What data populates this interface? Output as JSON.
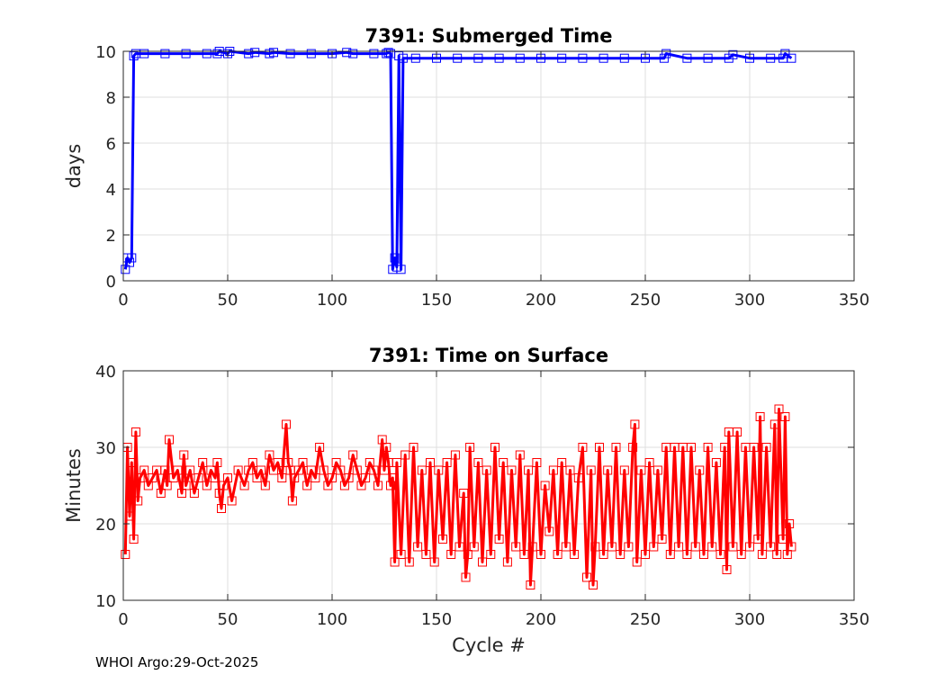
{
  "footer": "WHOI Argo:29-Oct-2025",
  "chart_data": [
    {
      "type": "line",
      "title": "7391: Submerged Time",
      "xlabel": "",
      "ylabel": "days",
      "xlim": [
        0,
        350
      ],
      "ylim": [
        0,
        10
      ],
      "xticks": [
        0,
        50,
        100,
        150,
        200,
        250,
        300,
        350
      ],
      "yticks": [
        0,
        2,
        4,
        6,
        8,
        10
      ],
      "grid": true,
      "marker": "square",
      "color": "#0000ff",
      "series": [
        {
          "name": "Submerged Time",
          "x": [
            1,
            2,
            3,
            4,
            5,
            6,
            10,
            20,
            30,
            40,
            45,
            46,
            50,
            51,
            60,
            63,
            70,
            72,
            80,
            90,
            100,
            107,
            110,
            120,
            126,
            127,
            128,
            129,
            130,
            131,
            132,
            133,
            134,
            140,
            150,
            160,
            170,
            180,
            190,
            200,
            210,
            220,
            230,
            240,
            250,
            259,
            260,
            270,
            280,
            290,
            292,
            300,
            310,
            316,
            317,
            320
          ],
          "y": [
            0.5,
            1.0,
            0.8,
            1.0,
            9.8,
            9.9,
            9.9,
            9.9,
            9.9,
            9.9,
            9.9,
            10.0,
            9.9,
            10.0,
            9.9,
            9.95,
            9.9,
            9.95,
            9.9,
            9.9,
            9.9,
            9.95,
            9.9,
            9.9,
            9.9,
            9.95,
            9.9,
            0.5,
            1.0,
            0.6,
            9.8,
            0.5,
            9.7,
            9.7,
            9.7,
            9.7,
            9.7,
            9.7,
            9.7,
            9.7,
            9.7,
            9.7,
            9.7,
            9.7,
            9.7,
            9.7,
            9.9,
            9.7,
            9.7,
            9.7,
            9.85,
            9.7,
            9.7,
            9.7,
            9.9,
            9.7
          ]
        }
      ]
    },
    {
      "type": "line",
      "title": "7391: Time on Surface",
      "xlabel": "Cycle #",
      "ylabel": "Minutes",
      "xlim": [
        0,
        350
      ],
      "ylim": [
        10,
        40
      ],
      "xticks": [
        0,
        50,
        100,
        150,
        200,
        250,
        300,
        350
      ],
      "yticks": [
        10,
        20,
        30,
        40
      ],
      "grid": true,
      "marker": "square",
      "color": "#ff0000",
      "series": [
        {
          "name": "Time on Surface",
          "x": [
            1,
            2,
            3,
            4,
            5,
            6,
            7,
            8,
            10,
            12,
            14,
            16,
            18,
            20,
            21,
            22,
            24,
            26,
            28,
            29,
            30,
            32,
            34,
            36,
            38,
            40,
            42,
            44,
            45,
            46,
            47,
            48,
            50,
            52,
            55,
            58,
            60,
            62,
            64,
            66,
            68,
            70,
            72,
            74,
            76,
            78,
            79,
            80,
            81,
            82,
            84,
            86,
            88,
            90,
            92,
            94,
            96,
            98,
            100,
            102,
            104,
            106,
            108,
            110,
            112,
            114,
            116,
            118,
            120,
            122,
            124,
            125,
            126,
            127,
            128,
            129,
            130,
            131,
            133,
            135,
            137,
            139,
            141,
            143,
            145,
            147,
            149,
            151,
            153,
            155,
            157,
            159,
            161,
            163,
            164,
            165,
            166,
            168,
            170,
            172,
            174,
            176,
            178,
            180,
            182,
            184,
            186,
            188,
            190,
            192,
            194,
            195,
            196,
            198,
            200,
            202,
            204,
            206,
            208,
            210,
            212,
            214,
            216,
            218,
            220,
            222,
            224,
            225,
            226,
            228,
            230,
            232,
            234,
            236,
            238,
            240,
            242,
            244,
            245,
            246,
            248,
            250,
            252,
            254,
            256,
            258,
            260,
            262,
            264,
            266,
            268,
            270,
            272,
            274,
            276,
            278,
            280,
            282,
            284,
            286,
            288,
            289,
            290,
            292,
            294,
            296,
            298,
            300,
            302,
            304,
            305,
            306,
            308,
            310,
            312,
            313,
            314,
            316,
            317,
            318,
            319,
            320
          ],
          "y": [
            16,
            30,
            21,
            28,
            18,
            32,
            23,
            26,
            27,
            25,
            26,
            27,
            24,
            27,
            25,
            31,
            26,
            27,
            24,
            29,
            25,
            27,
            24,
            26,
            28,
            25,
            27,
            26,
            28,
            24,
            22,
            25,
            26,
            23,
            27,
            25,
            27,
            28,
            26,
            27,
            25,
            29,
            27,
            28,
            26,
            33,
            28,
            27,
            23,
            26,
            27,
            28,
            25,
            27,
            26,
            30,
            27,
            25,
            26,
            28,
            27,
            25,
            26,
            29,
            27,
            25,
            26,
            28,
            27,
            25,
            31,
            27,
            30,
            28,
            25,
            26,
            15,
            28,
            16,
            29,
            15,
            30,
            17,
            27,
            16,
            28,
            15,
            27,
            18,
            28,
            16,
            29,
            17,
            24,
            13,
            16,
            30,
            17,
            28,
            15,
            27,
            16,
            30,
            18,
            28,
            15,
            27,
            17,
            29,
            16,
            27,
            12,
            17,
            28,
            16,
            25,
            19,
            27,
            16,
            28,
            17,
            27,
            16,
            26,
            30,
            13,
            27,
            12,
            17,
            30,
            16,
            27,
            17,
            30,
            16,
            27,
            17,
            30,
            33,
            15,
            27,
            16,
            28,
            17,
            27,
            18,
            30,
            16,
            30,
            17,
            30,
            16,
            30,
            17,
            27,
            16,
            30,
            17,
            28,
            16,
            30,
            14,
            32,
            17,
            32,
            16,
            30,
            17,
            30,
            18,
            34,
            16,
            30,
            17,
            33,
            16,
            35,
            18,
            34,
            16,
            20,
            17
          ]
        }
      ]
    }
  ]
}
